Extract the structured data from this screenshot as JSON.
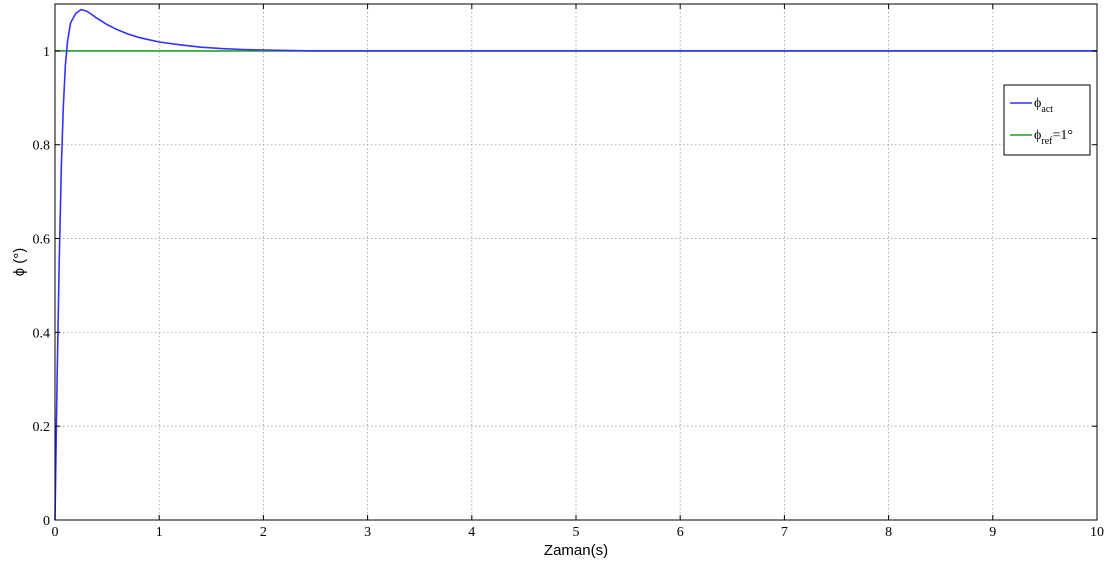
{
  "chart_data": {
    "type": "line",
    "xlabel": "Zaman(s)",
    "ylabel": "ϕ (°)",
    "xlim": [
      0,
      10
    ],
    "ylim": [
      0,
      1.1
    ],
    "x_ticks": [
      0,
      1,
      2,
      3,
      4,
      5,
      6,
      7,
      8,
      9,
      10
    ],
    "y_ticks": [
      0,
      0.2,
      0.4,
      0.6,
      0.8,
      1
    ],
    "x_tick_labels": [
      "0",
      "1",
      "2",
      "3",
      "4",
      "5",
      "6",
      "7",
      "8",
      "9",
      "10"
    ],
    "y_tick_labels": [
      "0",
      "0.2",
      "0.4",
      "0.6",
      "0.8",
      "1"
    ],
    "grid": true,
    "legend_position": "top-right",
    "series": [
      {
        "name": "ϕact",
        "name_main": "ϕ",
        "name_sub": "act",
        "name_suffix": "",
        "color": "#3333ff",
        "x": [
          0,
          0.02,
          0.04,
          0.06,
          0.08,
          0.1,
          0.12,
          0.15,
          0.2,
          0.25,
          0.3,
          0.35,
          0.4,
          0.5,
          0.6,
          0.7,
          0.8,
          0.9,
          1.0,
          1.2,
          1.4,
          1.6,
          1.8,
          2.0,
          2.2,
          2.5,
          3.0,
          4.0,
          5.0,
          6.0,
          7.0,
          8.0,
          9.0,
          10.0
        ],
        "y": [
          0,
          0.3,
          0.55,
          0.75,
          0.88,
          0.97,
          1.02,
          1.06,
          1.08,
          1.088,
          1.085,
          1.078,
          1.07,
          1.056,
          1.045,
          1.036,
          1.029,
          1.024,
          1.019,
          1.013,
          1.008,
          1.005,
          1.003,
          1.002,
          1.001,
          1.0,
          1.0,
          1.0,
          1.0,
          1.0,
          1.0,
          1.0,
          1.0,
          1.0
        ]
      },
      {
        "name": "ϕref=1°",
        "name_main": "ϕ",
        "name_sub": "ref",
        "name_suffix": "=1°",
        "color": "#22a022",
        "x": [
          0,
          10
        ],
        "y": [
          1,
          1
        ]
      }
    ]
  }
}
